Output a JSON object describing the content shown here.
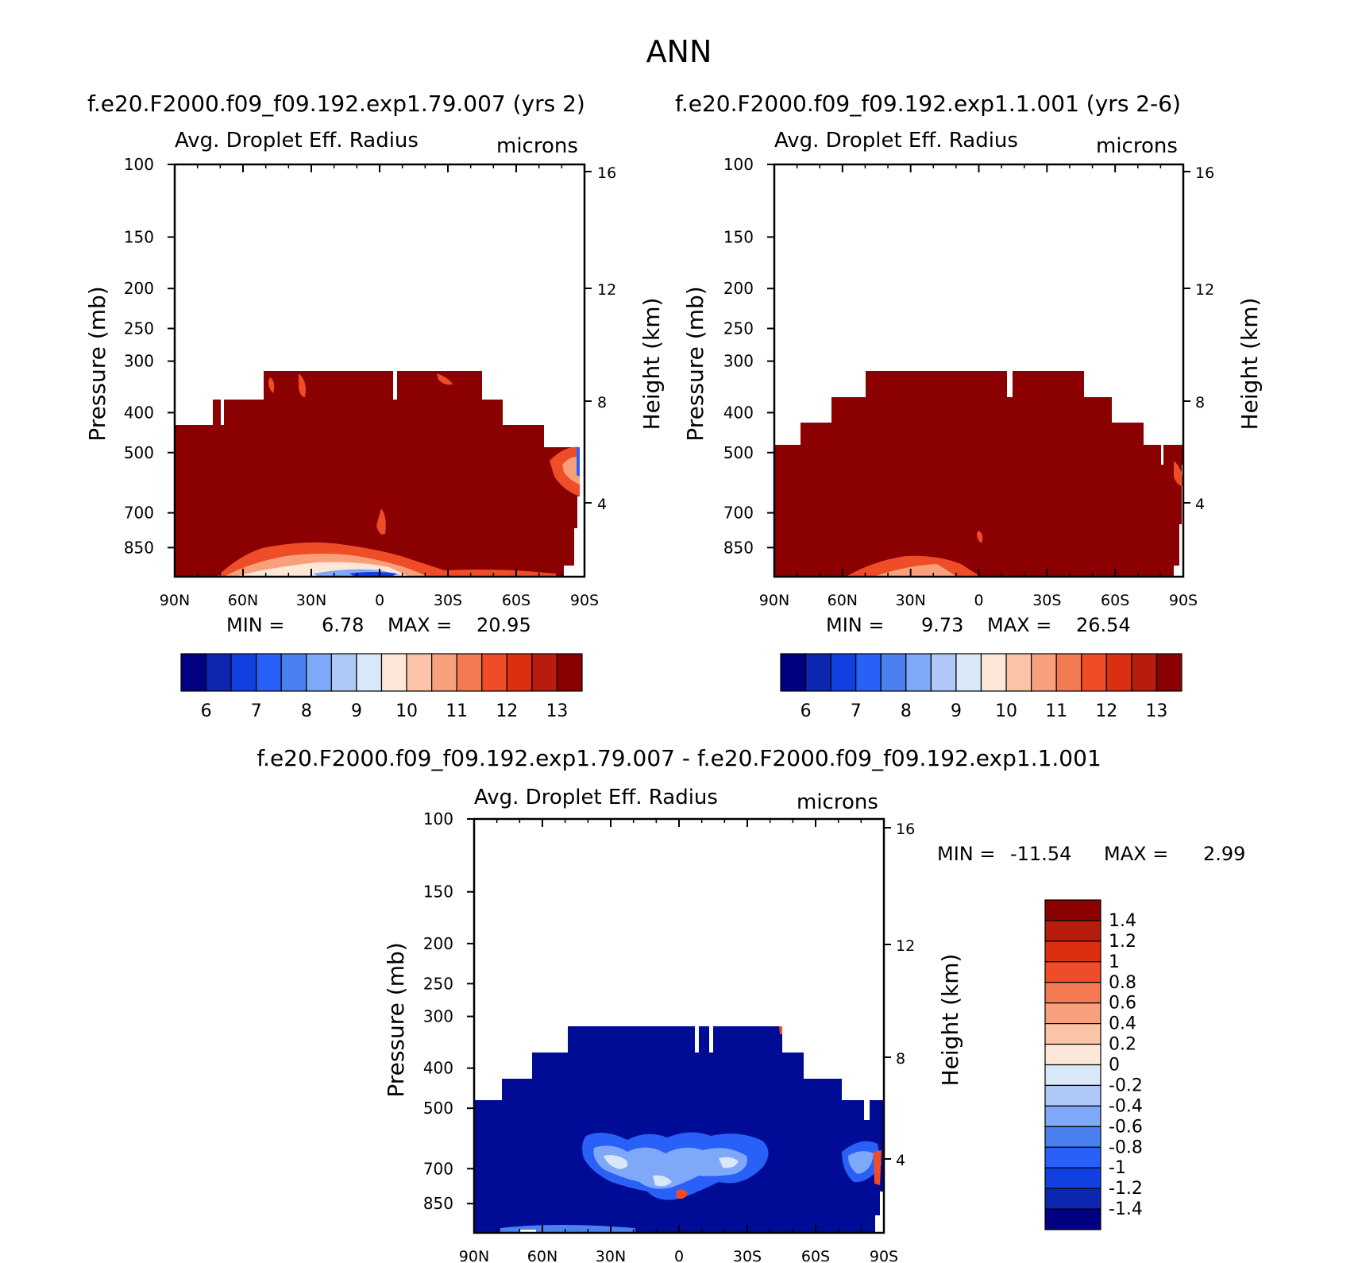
{
  "figure": {
    "title": "ANN"
  },
  "colors": {
    "warm": "#8b0000",
    "deep_blue": "#000c96",
    "light_blue": "#3a6ef0",
    "pale": "#fde7d8"
  },
  "chart_data": [
    {
      "type": "heatmap",
      "case_title": "f.e20.F2000.f09_f09.192.exp1.79.007 (yrs 2)",
      "variable": "Avg. Droplet Eff. Radius",
      "units": "microns",
      "ylabel": "Pressure (mb)",
      "ylabel_right": "Height (km)",
      "x_ticks": [
        "90N",
        "60N",
        "30N",
        "0",
        "30S",
        "60S",
        "90S"
      ],
      "x_range": [
        90,
        -90
      ],
      "y_ticks": [
        100,
        150,
        200,
        250,
        300,
        400,
        500,
        700,
        850
      ],
      "y_range": [
        100,
        1000
      ],
      "y_right_ticks": [
        16,
        12,
        8,
        4
      ],
      "min_label": "MIN =",
      "min_value": "6.78",
      "max_label": "MAX =",
      "max_value": "20.95",
      "colorbar_ticks": [
        "6",
        "7",
        "8",
        "9",
        "10",
        "11",
        "12",
        "13"
      ],
      "colorbar_colors": [
        "#000080",
        "#0c26b0",
        "#1040e0",
        "#2860f8",
        "#4a80f0",
        "#80a8f8",
        "#b0c8f8",
        "#d8e8f8",
        "#fde7d8",
        "#fbc4a8",
        "#f8a07c",
        "#f37a50",
        "#ef4c28",
        "#dc2e10",
        "#b81c0c",
        "#8b0000"
      ]
    },
    {
      "type": "heatmap",
      "case_title": "f.e20.F2000.f09_f09.192.exp1.1.001 (yrs 2-6)",
      "variable": "Avg. Droplet Eff. Radius",
      "units": "microns",
      "ylabel": "Pressure (mb)",
      "ylabel_right": "Height (km)",
      "x_ticks": [
        "90N",
        "60N",
        "30N",
        "0",
        "30S",
        "60S",
        "90S"
      ],
      "x_range": [
        90,
        -90
      ],
      "y_ticks": [
        100,
        150,
        200,
        250,
        300,
        400,
        500,
        700,
        850
      ],
      "y_range": [
        100,
        1000
      ],
      "y_right_ticks": [
        16,
        12,
        8,
        4
      ],
      "min_label": "MIN =",
      "min_value": "9.73",
      "max_label": "MAX =",
      "max_value": "26.54",
      "colorbar_ticks": [
        "6",
        "7",
        "8",
        "9",
        "10",
        "11",
        "12",
        "13"
      ],
      "colorbar_colors": [
        "#000080",
        "#0c26b0",
        "#1040e0",
        "#2860f8",
        "#4a80f0",
        "#80a8f8",
        "#b0c8f8",
        "#d8e8f8",
        "#fde7d8",
        "#fbc4a8",
        "#f8a07c",
        "#f37a50",
        "#ef4c28",
        "#dc2e10",
        "#b81c0c",
        "#8b0000"
      ]
    },
    {
      "type": "heatmap",
      "case_title": "f.e20.F2000.f09_f09.192.exp1.79.007 - f.e20.F2000.f09_f09.192.exp1.1.001",
      "variable": "Avg. Droplet Eff. Radius",
      "units": "microns",
      "ylabel": "Pressure (mb)",
      "ylabel_right": "Height (km)",
      "x_ticks": [
        "90N",
        "60N",
        "30N",
        "0",
        "30S",
        "60S",
        "90S"
      ],
      "x_range": [
        90,
        -90
      ],
      "y_ticks": [
        100,
        150,
        200,
        250,
        300,
        400,
        500,
        700,
        850
      ],
      "y_range": [
        100,
        1000
      ],
      "y_right_ticks": [
        16,
        12,
        8,
        4
      ],
      "min_label": "MIN =",
      "min_value": "-11.54",
      "max_label": "MAX =",
      "max_value": "2.99",
      "colorbar_ticks": [
        "1.4",
        "1.2",
        "1",
        "0.8",
        "0.6",
        "0.4",
        "0.2",
        "0",
        "-0.2",
        "-0.4",
        "-0.6",
        "-0.8",
        "-1",
        "-1.2",
        "-1.4"
      ],
      "colorbar_colors": [
        "#8b0000",
        "#b81c0c",
        "#dc2e10",
        "#ef4c28",
        "#f37a50",
        "#f8a07c",
        "#fbc4a8",
        "#fde7d8",
        "#d8e8f8",
        "#b0c8f8",
        "#80a8f8",
        "#4a80f0",
        "#2860f8",
        "#1040e0",
        "#0c26b0",
        "#000080"
      ]
    }
  ]
}
